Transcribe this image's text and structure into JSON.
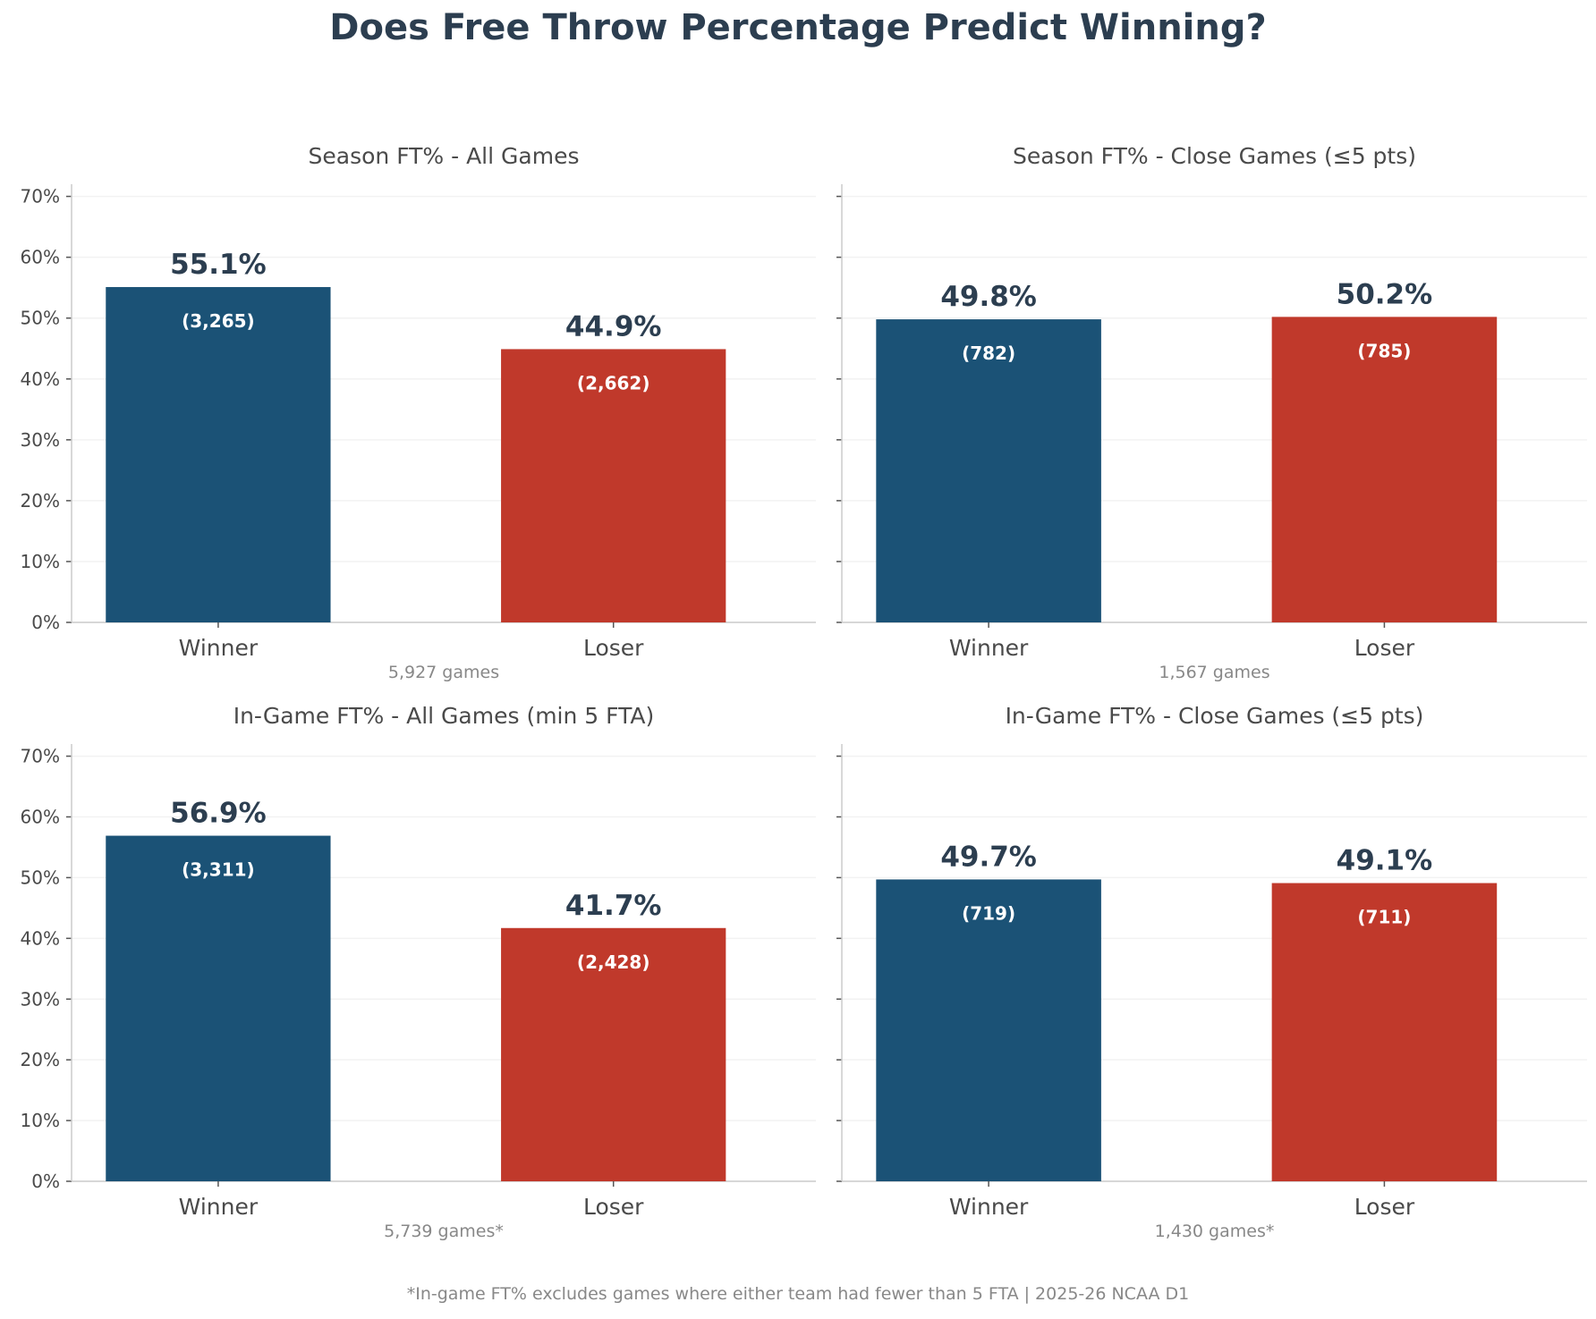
{
  "title": "Does Free Throw Percentage Predict Winning?",
  "footnote": "*In-game FT% excludes games where either team had fewer than 5 FTA  |  2025-26 NCAA D1",
  "colors": {
    "winner": "#1b5276",
    "loser": "#c0392b",
    "value_label": "#2c3e50",
    "count_label": "#ffffff",
    "subtitle": "#888888"
  },
  "chart_data": [
    {
      "type": "bar",
      "title": "Season FT% - All Games",
      "categories": [
        "Winner",
        "Loser"
      ],
      "values": [
        55.1,
        44.9
      ],
      "value_labels": [
        "55.1%",
        "44.9%"
      ],
      "count_labels": [
        "(3,265)",
        "(2,662)"
      ],
      "xlabel": "5,927 games",
      "ylim": [
        0,
        72
      ],
      "yticks": [
        0,
        10,
        20,
        30,
        40,
        50,
        60,
        70
      ],
      "ytick_labels": [
        "0%",
        "10%",
        "20%",
        "30%",
        "40%",
        "50%",
        "60%",
        "70%"
      ],
      "grid": true
    },
    {
      "type": "bar",
      "title": "Season FT% - Close Games (≤5 pts)",
      "categories": [
        "Winner",
        "Loser"
      ],
      "values": [
        49.8,
        50.2
      ],
      "value_labels": [
        "49.8%",
        "50.2%"
      ],
      "count_labels": [
        "(782)",
        "(785)"
      ],
      "xlabel": "1,567 games",
      "ylim": [
        0,
        72
      ],
      "yticks": [
        0,
        10,
        20,
        30,
        40,
        50,
        60,
        70
      ],
      "ytick_labels": [],
      "grid": true
    },
    {
      "type": "bar",
      "title": "In-Game FT% - All Games (min 5 FTA)",
      "categories": [
        "Winner",
        "Loser"
      ],
      "values": [
        56.9,
        41.7
      ],
      "value_labels": [
        "56.9%",
        "41.7%"
      ],
      "count_labels": [
        "(3,311)",
        "(2,428)"
      ],
      "xlabel": "5,739 games*",
      "ylim": [
        0,
        72
      ],
      "yticks": [
        0,
        10,
        20,
        30,
        40,
        50,
        60,
        70
      ],
      "ytick_labels": [
        "0%",
        "10%",
        "20%",
        "30%",
        "40%",
        "50%",
        "60%",
        "70%"
      ],
      "grid": true
    },
    {
      "type": "bar",
      "title": "In-Game FT% - Close Games (≤5 pts)",
      "categories": [
        "Winner",
        "Loser"
      ],
      "values": [
        49.7,
        49.1
      ],
      "value_labels": [
        "49.7%",
        "49.1%"
      ],
      "count_labels": [
        "(719)",
        "(711)"
      ],
      "xlabel": "1,430 games*",
      "ylim": [
        0,
        72
      ],
      "yticks": [
        0,
        10,
        20,
        30,
        40,
        50,
        60,
        70
      ],
      "ytick_labels": [],
      "grid": true
    }
  ]
}
